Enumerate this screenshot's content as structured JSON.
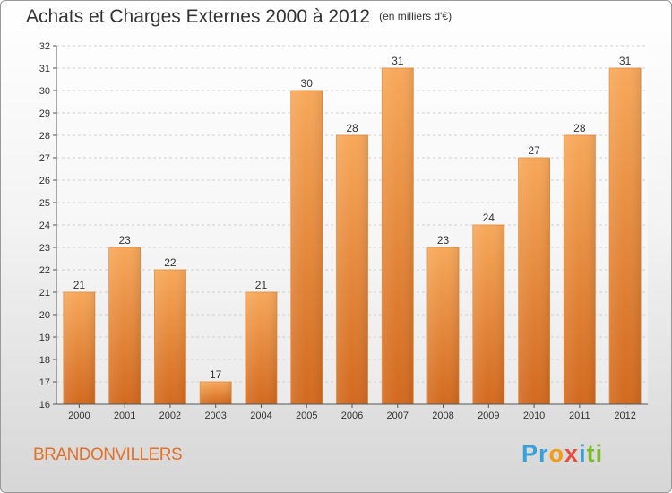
{
  "chart_data": {
    "type": "bar",
    "title": "Achats et Charges Externes 2000 à 2012",
    "subtitle": "(en milliers d'€)",
    "categories": [
      "2000",
      "2001",
      "2002",
      "2003",
      "2004",
      "2005",
      "2006",
      "2007",
      "2008",
      "2009",
      "2010",
      "2011",
      "2012"
    ],
    "values": [
      21,
      23,
      22,
      17,
      21,
      30,
      28,
      31,
      23,
      24,
      27,
      28,
      31
    ],
    "ylim": [
      16,
      32
    ],
    "yticks": [
      16,
      17,
      18,
      19,
      20,
      21,
      22,
      23,
      24,
      25,
      26,
      27,
      28,
      29,
      30,
      31,
      32
    ],
    "grid": true,
    "bar_color_top": "#f7a85a",
    "bar_color_bottom": "#d2691e"
  },
  "footer": {
    "city": "BRANDONVILLERS",
    "logo": [
      "P",
      "r",
      "o",
      "x",
      "i",
      "t",
      "i"
    ],
    "logo_colors": [
      "#3aa0d8",
      "#3aa0d8",
      "#f39c12",
      "#e74c3c",
      "#3aa0d8",
      "#7dbb2b",
      "#7dbb2b"
    ]
  }
}
